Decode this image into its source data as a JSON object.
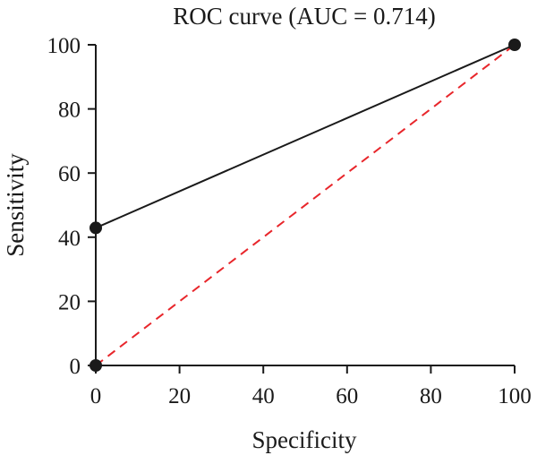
{
  "chart_data": {
    "type": "line",
    "title": "ROC curve (AUC = 0.714)",
    "xlabel": "Specificity",
    "ylabel": "Sensitivity",
    "xlim": [
      0,
      100
    ],
    "ylim": [
      0,
      100
    ],
    "xticks": [
      "0",
      "20",
      "40",
      "60",
      "80",
      "100"
    ],
    "yticks": [
      "0",
      "20",
      "40",
      "60",
      "80",
      "100"
    ],
    "grid": false,
    "legend": "none",
    "series": [
      {
        "x": [
          0,
          0,
          100
        ],
        "y": [
          0,
          42.9,
          100
        ],
        "color": "#1a1a1a",
        "style": "solid",
        "markers": true
      },
      {
        "x": [
          0,
          100
        ],
        "y": [
          0,
          100
        ],
        "color": "#e8262b",
        "style": "dashed",
        "markers": false
      }
    ]
  }
}
